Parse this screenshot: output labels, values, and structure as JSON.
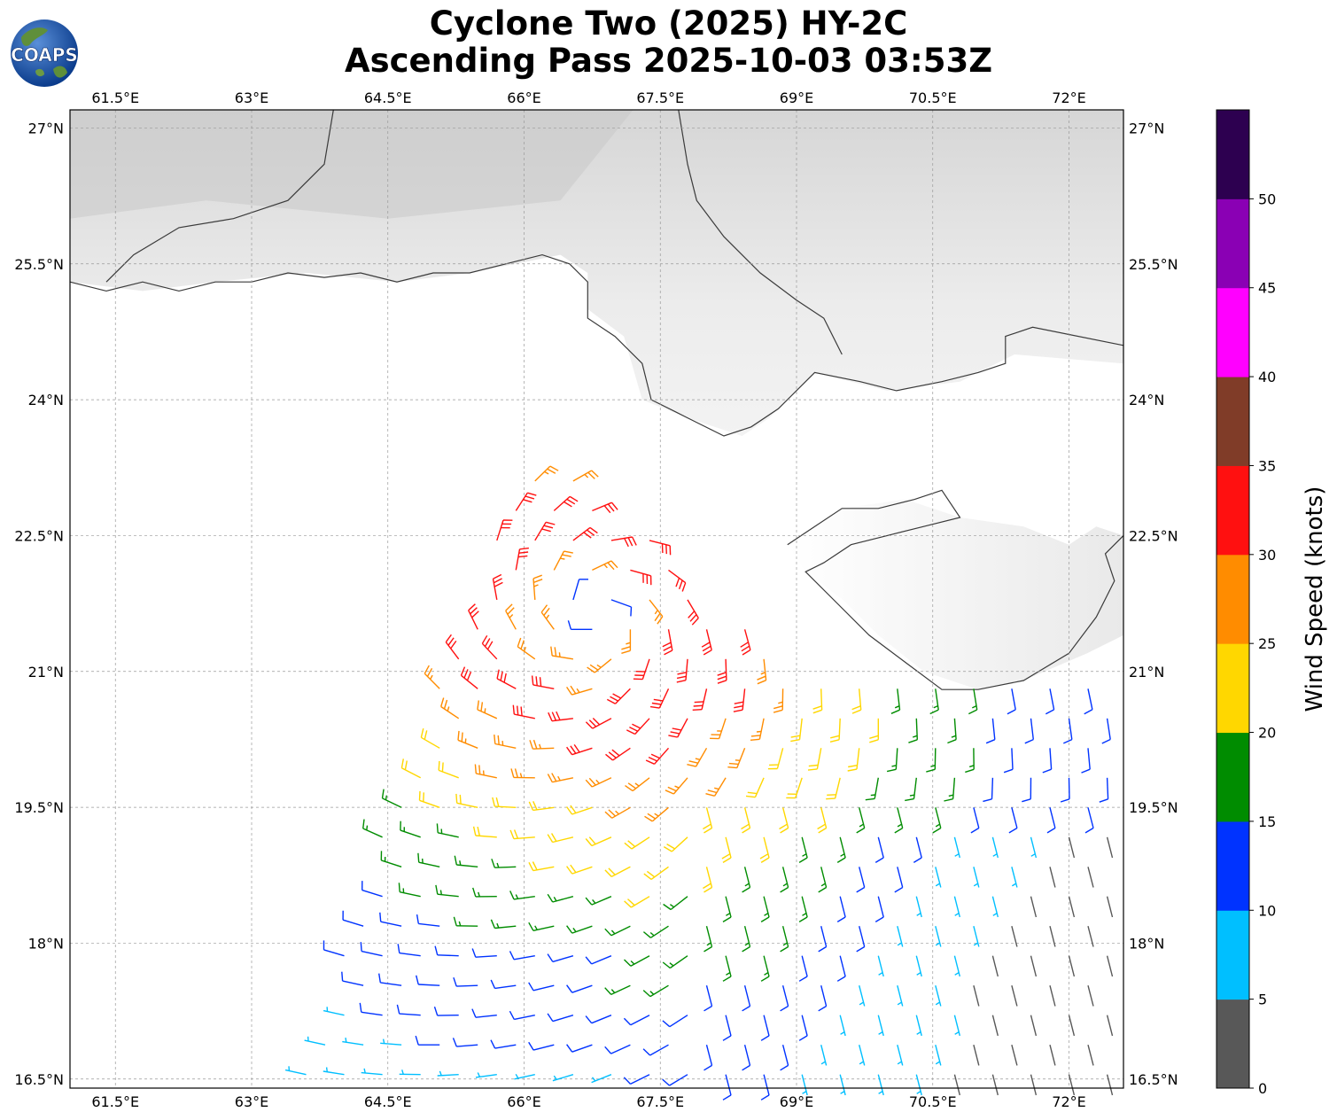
{
  "title": {
    "line1": "Cyclone Two (2025) HY-2C",
    "line2": "Ascending Pass 2025-10-03 03:53Z"
  },
  "logo": {
    "text": "COAPS",
    "icon": "globe-icon"
  },
  "map": {
    "lon_range": [
      61.0,
      72.6
    ],
    "lat_range": [
      16.4,
      27.2
    ],
    "lon_ticks": [
      "61.5°E",
      "63°E",
      "64.5°E",
      "66°E",
      "67.5°E",
      "69°E",
      "70.5°E",
      "72°E"
    ],
    "lat_ticks": [
      "27°N",
      "25.5°N",
      "24°N",
      "22.5°N",
      "21°N",
      "19.5°N",
      "18°N",
      "16.5°N"
    ],
    "gridlines": true,
    "cyclone_center": {
      "lon": 66.8,
      "lat": 21.6
    }
  },
  "colorbar": {
    "label": "Wind Speed (knots)",
    "ticks": [
      "0",
      "5",
      "10",
      "15",
      "20",
      "25",
      "30",
      "35",
      "40",
      "45",
      "50"
    ],
    "bins": [
      {
        "range": [
          0,
          5
        ],
        "color": "#585858"
      },
      {
        "range": [
          5,
          10
        ],
        "color": "#00bfff"
      },
      {
        "range": [
          10,
          15
        ],
        "color": "#0033ff"
      },
      {
        "range": [
          15,
          20
        ],
        "color": "#008c00"
      },
      {
        "range": [
          20,
          25
        ],
        "color": "#ffd700"
      },
      {
        "range": [
          25,
          30
        ],
        "color": "#ff8c00"
      },
      {
        "range": [
          30,
          35
        ],
        "color": "#ff1010"
      },
      {
        "range": [
          35,
          40
        ],
        "color": "#803c28"
      },
      {
        "range": [
          40,
          45
        ],
        "color": "#ff00ff"
      },
      {
        "range": [
          45,
          50
        ],
        "color": "#8a00b4"
      },
      {
        "range": [
          50,
          55
        ],
        "color": "#2d0050"
      }
    ]
  }
}
